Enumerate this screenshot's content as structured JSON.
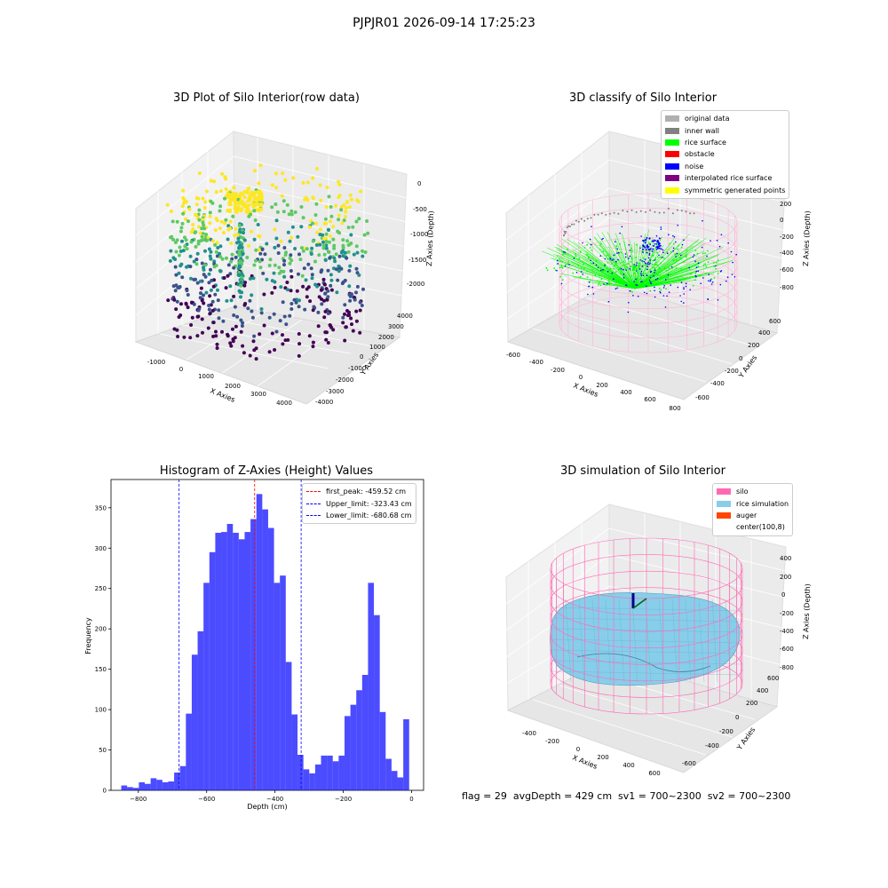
{
  "figure": {
    "suptitle": "PJPJR01 2026-09-14 17:25:23",
    "status_line": "flag = 29  avgDepth = 429 cm  sv1 = 700~2300  sv2 = 700~2300"
  },
  "panels": {
    "raw": {
      "title": "3D Plot of Silo Interior(row data)",
      "x_label": "X Axies",
      "y_label": "Y Axies",
      "z_label": "Z Axies (Depth)",
      "x_ticks": [
        "-1000",
        "0",
        "1000",
        "2000",
        "3000",
        "4000"
      ],
      "y_ticks": [
        "-4000",
        "-3000",
        "-2000",
        "-1000",
        "0",
        "1000",
        "2000",
        "3000",
        "4000"
      ],
      "z_ticks": [
        "0",
        "-500",
        "-1000",
        "-1500",
        "-2000"
      ],
      "colormap": [
        "#440154",
        "#3b528b",
        "#21918c",
        "#5ec962",
        "#fde725"
      ]
    },
    "classify": {
      "title": "3D classify of Silo Interior",
      "x_label": "X Axies",
      "y_label": "Y Axies",
      "z_label": "Z Axies (Depth)",
      "x_ticks": [
        "-600",
        "-400",
        "-200",
        "0",
        "200",
        "400",
        "600",
        "800"
      ],
      "y_ticks": [
        "-600",
        "-400",
        "-200",
        "0",
        "200",
        "400",
        "600"
      ],
      "z_ticks": [
        "200",
        "0",
        "-200",
        "-400",
        "-600",
        "-800"
      ],
      "legend": [
        {
          "label": "original data",
          "color": "#b0b0b0"
        },
        {
          "label": "inner wall",
          "color": "#808080"
        },
        {
          "label": "rice surface",
          "color": "#00ff00"
        },
        {
          "label": "obstacle",
          "color": "#ff0000"
        },
        {
          "label": "noise",
          "color": "#0000ff"
        },
        {
          "label": "interpolated rice surface",
          "color": "#800080"
        },
        {
          "label": "symmetric generated points",
          "color": "#ffff00"
        }
      ]
    },
    "simulation": {
      "title": "3D simulation of Silo Interior",
      "x_label": "X Axies",
      "y_label": "Y Axies",
      "z_label": "Z Axies (Depth)",
      "x_ticks": [
        "-400",
        "-200",
        "0",
        "200",
        "400",
        "600"
      ],
      "y_ticks": [
        "-600",
        "-400",
        "-200",
        "0",
        "200",
        "400",
        "600"
      ],
      "z_ticks": [
        "400",
        "200",
        "0",
        "-200",
        "-400",
        "-600",
        "-800"
      ],
      "legend": [
        {
          "label": "silo",
          "color": "#ff69b4"
        },
        {
          "label": "rice simulation",
          "color": "#87ceeb"
        },
        {
          "label": "auger",
          "color": "#ff4500"
        },
        {
          "label": "center(100,8)",
          "color": "#ffffff"
        }
      ]
    }
  },
  "chart_data": {
    "type": "bar",
    "title": "Histogram of Z-Axies (Height) Values",
    "xlabel": "Depth (cm)",
    "ylabel": "Frequency",
    "xlim": [
      -880,
      35
    ],
    "ylim": [
      0,
      385
    ],
    "x_ticks": [
      -800,
      -600,
      -400,
      -200,
      0
    ],
    "y_ticks": [
      0,
      50,
      100,
      150,
      200,
      250,
      300,
      350
    ],
    "bar_color": "#0000ff",
    "bin_width": 17.2,
    "bin_start": -850,
    "values": [
      6,
      4,
      3,
      10,
      8,
      15,
      13,
      10,
      11,
      22,
      30,
      95,
      168,
      197,
      257,
      295,
      319,
      320,
      330,
      319,
      311,
      320,
      336,
      367,
      348,
      325,
      257,
      266,
      159,
      94,
      44,
      26,
      21,
      32,
      43,
      43,
      36,
      43,
      92,
      106,
      124,
      143,
      257,
      217,
      97,
      39,
      24,
      16,
      88
    ],
    "lines": [
      {
        "label": "first_peak: -459.52 cm",
        "x": -459.52,
        "color": "#ff0000"
      },
      {
        "label": "Upper_limit: -323.43 cm",
        "x": -323.43,
        "color": "#0000ff"
      },
      {
        "label": "Lower_limit: -680.68 cm",
        "x": -680.68,
        "color": "#0000ff"
      }
    ]
  }
}
